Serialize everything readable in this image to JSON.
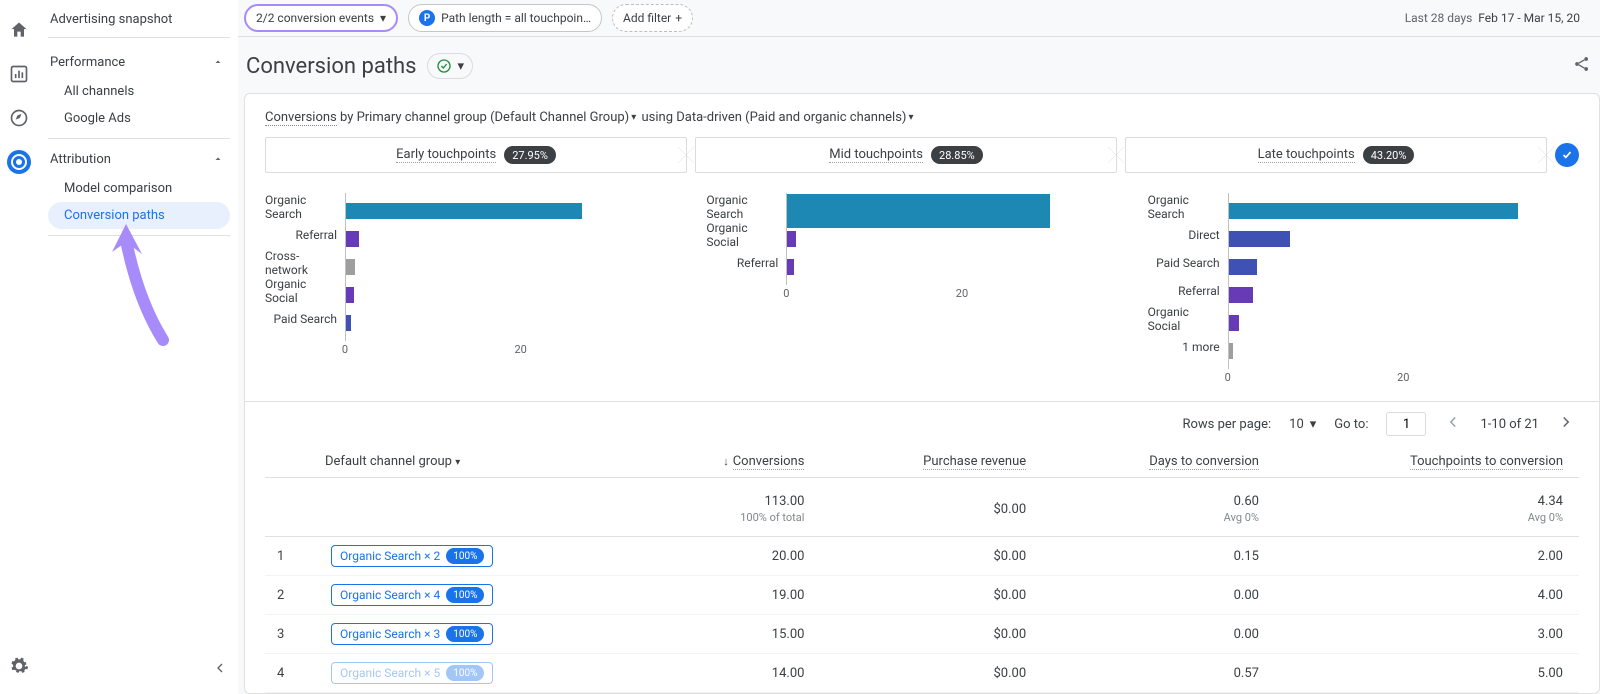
{
  "colors": {
    "blue": "#1a73e8",
    "bar_blue": "#1e88b5",
    "bar_indigo": "#3f51b5",
    "bar_purple": "#673ab7",
    "bar_gray": "#9e9e9e",
    "highlight_purple": "#a78bfa"
  },
  "sidebar": {
    "top": "Advertising snapshot",
    "groups": [
      {
        "label": "Performance",
        "subs": [
          "All channels",
          "Google Ads"
        ]
      },
      {
        "label": "Attribution",
        "subs": [
          "Model comparison",
          "Conversion paths"
        ],
        "selected": 1
      }
    ]
  },
  "topbar": {
    "events_chip": "2/2 conversion events",
    "path_chip": "Path length = all touchpoin…",
    "add_filter": "Add filter",
    "range_label": "Last 28 days",
    "range_dates": "Feb 17 - Mar 15, 20"
  },
  "page": {
    "title": "Conversion paths"
  },
  "crumb": {
    "a": "Conversions",
    "b": " by Primary channel group (Default Channel Group)",
    "c": " using Data-driven (Paid and organic channels)"
  },
  "touchpoints": [
    {
      "label": "Early touchpoints",
      "pct": "27.95%"
    },
    {
      "label": "Mid touchpoints",
      "pct": "28.85%"
    },
    {
      "label": "Late touchpoints",
      "pct": "43.20%"
    }
  ],
  "charts": {
    "xmax": 40,
    "xticks": [
      0,
      20
    ],
    "panels": [
      {
        "bars": [
          {
            "label": "Organic Search",
            "value": 27,
            "color": "#1e88b5"
          },
          {
            "label": "Referral",
            "value": 1.5,
            "color": "#673ab7"
          },
          {
            "label": "Cross-network",
            "value": 1.0,
            "color": "#9e9e9e"
          },
          {
            "label": "Organic Social",
            "value": 0.9,
            "color": "#673ab7"
          },
          {
            "label": "Paid Search",
            "value": 0.6,
            "color": "#3f51b5"
          }
        ]
      },
      {
        "bars": [
          {
            "label": "Organic Search",
            "value": 30,
            "color": "#1e88b5",
            "h": 34
          },
          {
            "label": "Organic Social",
            "value": 1.0,
            "color": "#673ab7"
          },
          {
            "label": "Referral",
            "value": 0.8,
            "color": "#673ab7"
          }
        ]
      },
      {
        "bars": [
          {
            "label": "Organic Search",
            "value": 33,
            "color": "#1e88b5"
          },
          {
            "label": "Direct",
            "value": 7,
            "color": "#3f51b5"
          },
          {
            "label": "Paid Search",
            "value": 3.2,
            "color": "#3f51b5"
          },
          {
            "label": "Referral",
            "value": 2.8,
            "color": "#673ab7"
          },
          {
            "label": "Organic Social",
            "value": 1.2,
            "color": "#673ab7"
          },
          {
            "label": "1 more",
            "value": 0.5,
            "color": "#9e9e9e"
          }
        ]
      }
    ]
  },
  "pager": {
    "rows_label": "Rows per page:",
    "rows_value": "10",
    "goto_label": "Go to:",
    "goto_value": "1",
    "range": "1-10 of 21"
  },
  "table": {
    "headers": [
      "Default channel group",
      "Conversions",
      "Purchase revenue",
      "Days to conversion",
      "Touchpoints to conversion"
    ],
    "totals": {
      "conversions": "113.00",
      "conversions_sub": "100% of total",
      "revenue": "$0.00",
      "days": "0.60",
      "days_sub": "Avg 0%",
      "touch": "4.34",
      "touch_sub": "Avg 0%"
    },
    "rows": [
      {
        "idx": "1",
        "path": "Organic Search × 2",
        "pct": "100%",
        "conversions": "20.00",
        "revenue": "$0.00",
        "days": "0.15",
        "touch": "2.00"
      },
      {
        "idx": "2",
        "path": "Organic Search × 4",
        "pct": "100%",
        "conversions": "19.00",
        "revenue": "$0.00",
        "days": "0.00",
        "touch": "4.00"
      },
      {
        "idx": "3",
        "path": "Organic Search × 3",
        "pct": "100%",
        "conversions": "15.00",
        "revenue": "$0.00",
        "days": "0.00",
        "touch": "3.00"
      },
      {
        "idx": "4",
        "path": "Organic Search × 5",
        "pct": "100%",
        "conversions": "14.00",
        "revenue": "$0.00",
        "days": "0.57",
        "touch": "5.00",
        "faded": true
      }
    ]
  }
}
